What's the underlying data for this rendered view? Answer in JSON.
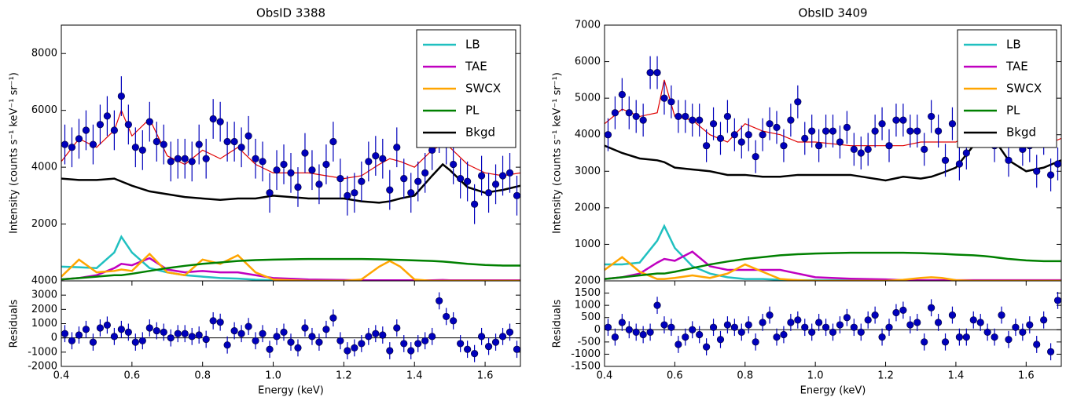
{
  "chart_data": [
    {
      "type": "line",
      "title": "ObsID 3388",
      "y_label": "Intensity (counts s⁻¹ keV⁻¹ sr⁻¹)",
      "xlim": [
        0.4,
        1.7
      ],
      "ylim": [
        0,
        9000
      ],
      "yticks": [
        2000,
        4000,
        6000,
        8000
      ],
      "legend": "upper right",
      "x": [
        0.4,
        0.45,
        0.5,
        0.55,
        0.57,
        0.6,
        0.65,
        0.7,
        0.75,
        0.8,
        0.85,
        0.9,
        0.95,
        1.0,
        1.1,
        1.2,
        1.25,
        1.3,
        1.33,
        1.36,
        1.4,
        1.45,
        1.48,
        1.5,
        1.55,
        1.6,
        1.65,
        1.7
      ],
      "series": [
        {
          "name": "LB",
          "color": "#20c0c0",
          "values": [
            500,
            480,
            450,
            1000,
            1550,
            1000,
            450,
            300,
            200,
            150,
            100,
            80,
            40,
            20,
            0,
            0,
            0,
            0,
            0,
            0,
            0,
            0,
            0,
            0,
            0,
            0,
            0,
            0
          ]
        },
        {
          "name": "TAE",
          "color": "#c000c0",
          "values": [
            50,
            100,
            200,
            450,
            600,
            550,
            800,
            400,
            300,
            350,
            300,
            300,
            200,
            100,
            50,
            30,
            20,
            20,
            20,
            20,
            20,
            20,
            30,
            20,
            20,
            20,
            20,
            20
          ]
        },
        {
          "name": "SWCX",
          "color": "#ffa500",
          "values": [
            150,
            750,
            300,
            350,
            400,
            350,
            950,
            300,
            200,
            750,
            600,
            900,
            300,
            50,
            0,
            0,
            50,
            500,
            700,
            500,
            50,
            0,
            0,
            0,
            0,
            0,
            0,
            0
          ]
        },
        {
          "name": "PL",
          "color": "#008000",
          "values": [
            50,
            100,
            150,
            200,
            200,
            250,
            350,
            450,
            530,
            600,
            650,
            700,
            730,
            750,
            770,
            770,
            770,
            760,
            750,
            740,
            720,
            700,
            680,
            660,
            600,
            560,
            540,
            540
          ]
        },
        {
          "name": "Bkgd",
          "color": "#000000",
          "values": [
            3600,
            3550,
            3550,
            3600,
            3500,
            3350,
            3150,
            3050,
            2950,
            2900,
            2850,
            2900,
            2900,
            3000,
            2900,
            2900,
            2800,
            2750,
            2800,
            2900,
            3000,
            3700,
            4100,
            3900,
            3300,
            3100,
            3200,
            3350
          ]
        }
      ],
      "model": {
        "color": "#e00000",
        "values": [
          4200,
          5000,
          4700,
          5300,
          6000,
          5100,
          5700,
          4400,
          4100,
          4600,
          4300,
          4700,
          4100,
          3800,
          3800,
          3600,
          3700,
          4100,
          4300,
          4200,
          4000,
          4600,
          4800,
          4700,
          4100,
          3800,
          3700,
          3800
        ]
      },
      "points": {
        "color": "#0000bb",
        "error": 700,
        "x": [
          0.41,
          0.43,
          0.45,
          0.47,
          0.49,
          0.51,
          0.53,
          0.55,
          0.57,
          0.59,
          0.61,
          0.63,
          0.65,
          0.67,
          0.69,
          0.71,
          0.73,
          0.75,
          0.77,
          0.79,
          0.81,
          0.83,
          0.85,
          0.87,
          0.89,
          0.91,
          0.93,
          0.95,
          0.97,
          0.99,
          1.01,
          1.03,
          1.05,
          1.07,
          1.09,
          1.11,
          1.13,
          1.15,
          1.17,
          1.19,
          1.21,
          1.23,
          1.25,
          1.27,
          1.29,
          1.31,
          1.33,
          1.35,
          1.37,
          1.39,
          1.41,
          1.43,
          1.45,
          1.47,
          1.49,
          1.51,
          1.53,
          1.55,
          1.57,
          1.59,
          1.61,
          1.63,
          1.65,
          1.67,
          1.69
        ],
        "values": [
          4800,
          4700,
          5000,
          5300,
          4800,
          5500,
          5800,
          5300,
          6500,
          5500,
          4700,
          4600,
          5600,
          4900,
          4800,
          4200,
          4300,
          4300,
          4200,
          4800,
          4300,
          5700,
          5600,
          4900,
          4900,
          4700,
          5100,
          4300,
          4200,
          3100,
          3900,
          4100,
          3800,
          3300,
          4500,
          3900,
          3400,
          4100,
          4900,
          3600,
          3000,
          3100,
          3500,
          4200,
          4400,
          4300,
          3200,
          4700,
          3600,
          3100,
          3500,
          3800,
          4600,
          5200,
          4800,
          4100,
          3600,
          3500,
          2700,
          3700,
          3100,
          3400,
          3700,
          3800,
          3000
        ]
      }
    },
    {
      "type": "scatter",
      "y_label": "Residuals",
      "x_label": "Energy (keV)",
      "zero_line": true,
      "xlim": [
        0.4,
        1.7
      ],
      "ylim": [
        -2000,
        4000
      ],
      "yticks": [
        -2000,
        -1000,
        0,
        1000,
        2000,
        3000,
        4000
      ],
      "xticks": [
        0.4,
        0.6,
        0.8,
        {
          "value": 1,
          "label": "1.0"
        },
        1.2,
        1.4,
        1.6
      ],
      "points": {
        "color": "#0000bb",
        "error": 600,
        "x": [
          0.41,
          0.43,
          0.45,
          0.47,
          0.49,
          0.51,
          0.53,
          0.55,
          0.57,
          0.59,
          0.61,
          0.63,
          0.65,
          0.67,
          0.69,
          0.71,
          0.73,
          0.75,
          0.77,
          0.79,
          0.81,
          0.83,
          0.85,
          0.87,
          0.89,
          0.91,
          0.93,
          0.95,
          0.97,
          0.99,
          1.01,
          1.03,
          1.05,
          1.07,
          1.09,
          1.11,
          1.13,
          1.15,
          1.17,
          1.19,
          1.21,
          1.23,
          1.25,
          1.27,
          1.29,
          1.31,
          1.33,
          1.35,
          1.37,
          1.39,
          1.41,
          1.43,
          1.45,
          1.47,
          1.49,
          1.51,
          1.53,
          1.55,
          1.57,
          1.59,
          1.61,
          1.63,
          1.65,
          1.67,
          1.69
        ],
        "values": [
          300,
          -200,
          200,
          600,
          -300,
          700,
          900,
          100,
          600,
          400,
          -300,
          -200,
          700,
          500,
          400,
          0,
          300,
          300,
          100,
          200,
          -100,
          1200,
          1100,
          -500,
          500,
          300,
          800,
          -200,
          300,
          -800,
          100,
          400,
          -300,
          -700,
          700,
          100,
          -300,
          600,
          1400,
          -200,
          -900,
          -700,
          -400,
          100,
          300,
          200,
          -900,
          700,
          -400,
          -900,
          -400,
          -200,
          100,
          2600,
          1500,
          1200,
          -400,
          -800,
          -1100,
          100,
          -600,
          -300,
          100,
          400,
          -800
        ]
      }
    },
    {
      "type": "line",
      "title": "ObsID 3409",
      "y_label": "Intensity (counts s⁻¹ keV⁻¹ sr⁻¹)",
      "xlim": [
        0.4,
        1.7
      ],
      "ylim": [
        0,
        7000
      ],
      "yticks": [
        1000,
        2000,
        3000,
        4000,
        5000,
        6000,
        7000
      ],
      "legend": "upper right",
      "x": [
        0.4,
        0.45,
        0.5,
        0.55,
        0.57,
        0.6,
        0.65,
        0.7,
        0.75,
        0.8,
        0.85,
        0.9,
        0.95,
        1.0,
        1.1,
        1.2,
        1.25,
        1.3,
        1.33,
        1.36,
        1.4,
        1.45,
        1.48,
        1.5,
        1.55,
        1.6,
        1.65,
        1.7
      ],
      "series": [
        {
          "name": "LB",
          "color": "#20c0c0",
          "values": [
            450,
            450,
            500,
            1100,
            1500,
            900,
            400,
            200,
            100,
            50,
            50,
            30,
            20,
            20,
            20,
            0,
            0,
            0,
            0,
            0,
            0,
            0,
            0,
            0,
            0,
            0,
            0,
            0
          ]
        },
        {
          "name": "TAE",
          "color": "#c000c0",
          "values": [
            50,
            100,
            200,
            500,
            600,
            550,
            800,
            400,
            300,
            300,
            300,
            300,
            200,
            100,
            60,
            40,
            20,
            20,
            20,
            20,
            20,
            20,
            20,
            20,
            20,
            20,
            20,
            20
          ]
        },
        {
          "name": "SWCX",
          "color": "#ffa500",
          "values": [
            300,
            650,
            250,
            50,
            50,
            80,
            150,
            80,
            200,
            450,
            250,
            50,
            20,
            0,
            0,
            0,
            30,
            80,
            100,
            80,
            20,
            0,
            0,
            0,
            0,
            0,
            0,
            0
          ]
        },
        {
          "name": "PL",
          "color": "#008000",
          "values": [
            50,
            100,
            150,
            200,
            200,
            250,
            350,
            450,
            530,
            600,
            650,
            700,
            730,
            750,
            770,
            770,
            770,
            760,
            750,
            740,
            720,
            700,
            680,
            660,
            600,
            560,
            540,
            540
          ]
        },
        {
          "name": "Bkgd",
          "color": "#000000",
          "values": [
            3700,
            3500,
            3350,
            3300,
            3250,
            3100,
            3050,
            3000,
            2900,
            2900,
            2850,
            2850,
            2900,
            2900,
            2900,
            2750,
            2850,
            2800,
            2850,
            2950,
            3100,
            3700,
            4200,
            4000,
            3300,
            3000,
            3100,
            3300
          ]
        }
      ],
      "model": {
        "color": "#e00000",
        "values": [
          4300,
          4700,
          4500,
          4600,
          5500,
          4500,
          4400,
          4000,
          3800,
          4300,
          4100,
          4000,
          3800,
          3800,
          3700,
          3700,
          3700,
          3800,
          3800,
          3800,
          3800,
          4100,
          4400,
          4200,
          3800,
          3700,
          3700,
          3900
        ]
      },
      "points": {
        "color": "#0000bb",
        "error": 450,
        "x": [
          0.41,
          0.43,
          0.45,
          0.47,
          0.49,
          0.51,
          0.53,
          0.55,
          0.57,
          0.59,
          0.61,
          0.63,
          0.65,
          0.67,
          0.69,
          0.71,
          0.73,
          0.75,
          0.77,
          0.79,
          0.81,
          0.83,
          0.85,
          0.87,
          0.89,
          0.91,
          0.93,
          0.95,
          0.97,
          0.99,
          1.01,
          1.03,
          1.05,
          1.07,
          1.09,
          1.11,
          1.13,
          1.15,
          1.17,
          1.19,
          1.21,
          1.23,
          1.25,
          1.27,
          1.29,
          1.31,
          1.33,
          1.35,
          1.37,
          1.39,
          1.41,
          1.43,
          1.45,
          1.47,
          1.49,
          1.51,
          1.53,
          1.55,
          1.57,
          1.59,
          1.61,
          1.63,
          1.65,
          1.67,
          1.69
        ],
        "values": [
          4000,
          4600,
          5100,
          4600,
          4500,
          4400,
          5700,
          5700,
          5000,
          4900,
          4500,
          4500,
          4400,
          4400,
          3700,
          4300,
          3900,
          4500,
          4000,
          3800,
          4000,
          3400,
          4000,
          4300,
          4200,
          3700,
          4400,
          4900,
          3900,
          4100,
          3700,
          4100,
          4100,
          3800,
          4200,
          3600,
          3500,
          3600,
          4100,
          4300,
          3700,
          4400,
          4400,
          4100,
          4100,
          3600,
          4500,
          4100,
          3300,
          4300,
          3200,
          3500,
          4800,
          4400,
          4200,
          3700,
          4700,
          3300,
          4400,
          3600,
          3700,
          3000,
          3900,
          2900,
          3200
        ]
      }
    },
    {
      "type": "scatter",
      "y_label": "Residuals",
      "x_label": "Energy (keV)",
      "zero_line": true,
      "xlim": [
        0.4,
        1.7
      ],
      "ylim": [
        -1500,
        2000
      ],
      "yticks": [
        -1500,
        -1000,
        -500,
        0,
        500,
        1000,
        1500,
        2000
      ],
      "xticks": [
        0.4,
        0.6,
        0.8,
        {
          "value": 1,
          "label": "1.0"
        },
        1.2,
        1.4,
        1.6
      ],
      "points": {
        "color": "#0000bb",
        "error": 350,
        "x": [
          0.41,
          0.43,
          0.45,
          0.47,
          0.49,
          0.51,
          0.53,
          0.55,
          0.57,
          0.59,
          0.61,
          0.63,
          0.65,
          0.67,
          0.69,
          0.71,
          0.73,
          0.75,
          0.77,
          0.79,
          0.81,
          0.83,
          0.85,
          0.87,
          0.89,
          0.91,
          0.93,
          0.95,
          0.97,
          0.99,
          1.01,
          1.03,
          1.05,
          1.07,
          1.09,
          1.11,
          1.13,
          1.15,
          1.17,
          1.19,
          1.21,
          1.23,
          1.25,
          1.27,
          1.29,
          1.31,
          1.33,
          1.35,
          1.37,
          1.39,
          1.41,
          1.43,
          1.45,
          1.47,
          1.49,
          1.51,
          1.53,
          1.55,
          1.57,
          1.59,
          1.61,
          1.63,
          1.65,
          1.67,
          1.69
        ],
        "values": [
          100,
          -300,
          300,
          0,
          -100,
          -200,
          -100,
          1000,
          200,
          100,
          -600,
          -300,
          0,
          -200,
          -700,
          100,
          -400,
          200,
          100,
          -100,
          200,
          -500,
          300,
          600,
          -300,
          -200,
          300,
          400,
          100,
          -100,
          300,
          100,
          -100,
          200,
          500,
          100,
          -100,
          400,
          600,
          -300,
          100,
          700,
          800,
          200,
          300,
          -500,
          900,
          300,
          -500,
          600,
          -300,
          -300,
          400,
          300,
          -100,
          -300,
          600,
          -400,
          100,
          -100,
          200,
          -600,
          400,
          -900,
          1200
        ]
      }
    }
  ]
}
